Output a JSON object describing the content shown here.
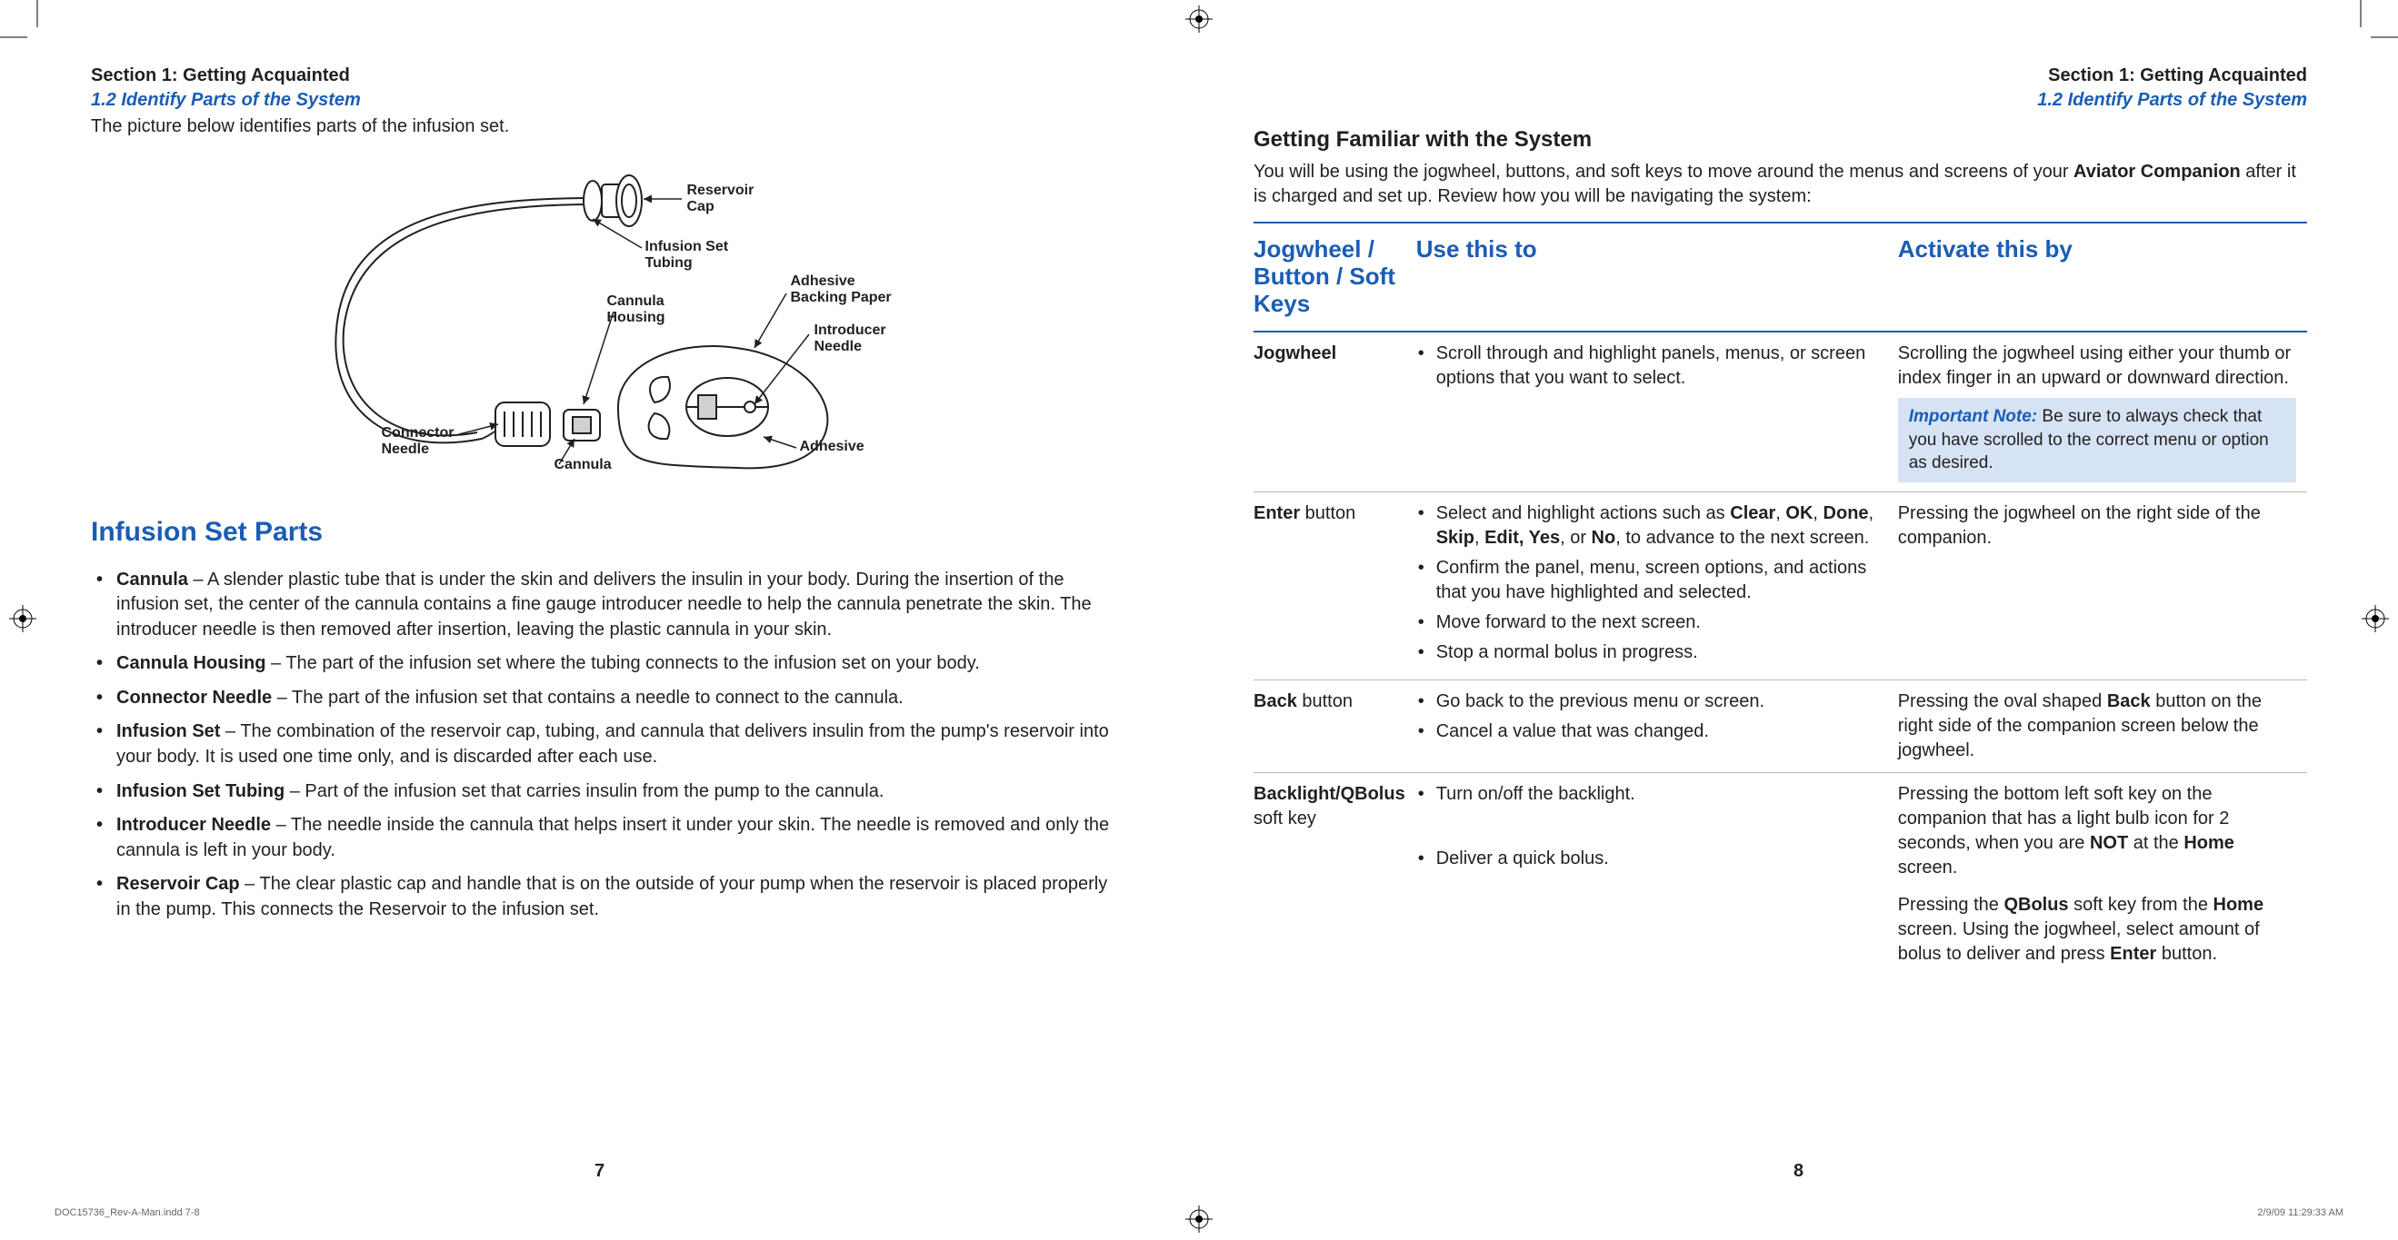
{
  "colors": {
    "brand_blue": "#1a5db4",
    "text": "#231f20",
    "note_bg": "#d6e3f4",
    "rule": "#b8b8b8",
    "bg": "#ffffff"
  },
  "left": {
    "section": "Section 1: Getting Acquainted",
    "subsection": "1.2 Identify Parts of the System",
    "intro": "The picture below identifies parts of the infusion set.",
    "diagram_labels": {
      "reservoir_cap": "Reservoir\nCap",
      "infusion_tubing": "Infusion Set\nTubing",
      "adhesive_backing": "Adhesive\nBacking Paper",
      "cannula_housing": "Cannula\nHousing",
      "introducer_needle": "Introducer\nNeedle",
      "connector_needle": "Connector\nNeedle",
      "cannula": "Cannula",
      "adhesive": "Adhesive"
    },
    "parts_heading": "Infusion Set Parts",
    "parts": [
      {
        "term": "Cannula",
        "desc": " – A slender plastic tube that is under the skin and delivers the insulin in your body. During the insertion of the infusion set, the center of the cannula contains a fine gauge introducer needle to help the cannula penetrate the skin. The introducer needle is then removed after insertion, leaving the plastic cannula in your skin."
      },
      {
        "term": "Cannula Housing",
        "desc": " – The part of the infusion set where the tubing connects to the infusion set on your body."
      },
      {
        "term": "Connector Needle",
        "desc": " – The part of the infusion set that contains a needle to connect to the cannula."
      },
      {
        "term": "Infusion Set",
        "desc": " – The combination of the reservoir cap, tubing, and cannula that delivers insulin from the pump's reservoir into your body. It is used one time only, and is discarded after each use."
      },
      {
        "term": "Infusion Set Tubing",
        "desc": " – Part of the infusion set that carries insulin from the pump to the cannula."
      },
      {
        "term": "Introducer Needle",
        "desc": " – The needle inside the cannula that helps insert it under your skin. The needle is removed and only the cannula is left in your body."
      },
      {
        "term": "Reservoir Cap",
        "desc": " – The clear plastic cap and handle that is on the outside of your pump when the reservoir is placed properly in the pump. This connects the Reservoir to the infusion set."
      }
    ],
    "page_number": "7"
  },
  "right": {
    "section": "Section 1: Getting Acquainted",
    "subsection": "1.2 Identify Parts of the System",
    "heading": "Getting Familiar with the System",
    "intro_pre": "You will be using the jogwheel, buttons, and soft keys to move around the menus and screens of your ",
    "intro_bold": "Aviator Companion",
    "intro_post": " after it is charged and set up. Review how you will be navigating the system:",
    "table": {
      "headers": {
        "c1": "Jogwheel / Button / Soft Keys",
        "c2": "Use this to",
        "c3": "Activate this by"
      },
      "rows": [
        {
          "control": "Jogwheel",
          "control_suffix": "",
          "use_items": [
            "Scroll through and highlight panels, menus, or screen options that you want to select."
          ],
          "activate_text": "Scrolling the jogwheel using either your thumb or index finger in an upward or downward direction.",
          "note": {
            "label": "Important Note:",
            "text": " Be sure to always check that you have scrolled to the correct menu or option as desired."
          }
        },
        {
          "control": "Enter",
          "control_suffix": " button",
          "use_items_rich": [
            {
              "pre": "Select and highlight actions such as ",
              "bolds": [
                "Clear",
                "OK",
                "Done",
                "Skip",
                "Edit, Yes",
                "No"
              ],
              "post": ", to advance to the next screen."
            },
            {
              "plain": "Confirm the panel, menu, screen options, and actions that you have highlighted and selected."
            },
            {
              "plain": "Move forward to the next screen."
            },
            {
              "plain": "Stop a normal bolus in progress."
            }
          ],
          "activate_text": "Pressing the jogwheel on the right side of the companion."
        },
        {
          "control": "Back",
          "control_suffix": " button",
          "use_items": [
            "Go back to the previous menu or screen.",
            "Cancel a value that was changed."
          ],
          "activate_rich": {
            "pre": "Pressing the oval shaped ",
            "b1": "Back",
            "post": " button on the right side of the companion screen below the jogwheel."
          }
        },
        {
          "control": "Backlight/QBolus",
          "control_suffix": " soft key",
          "use_groups": [
            {
              "items": [
                "Turn on/off the backlight."
              ],
              "activate": {
                "pre": "Pressing the bottom left soft key on the companion that has a light bulb icon for 2 seconds, when you are ",
                "b1": "NOT",
                "mid": " at the ",
                "b2": "Home",
                "post": " screen."
              }
            },
            {
              "items": [
                "Deliver a quick bolus."
              ],
              "activate": {
                "pre": "Pressing the ",
                "b1": "QBolus",
                "mid": " soft key from the ",
                "b2": "Home",
                "post": " screen. Using the jogwheel, select amount of bolus to deliver and press ",
                "b3": "Enter",
                "post2": " button."
              }
            }
          ]
        }
      ]
    },
    "page_number": "8"
  },
  "footer": {
    "file": "DOC15736_Rev-A-Man.indd   7-8",
    "timestamp": "2/9/09   11:29:33 AM"
  }
}
